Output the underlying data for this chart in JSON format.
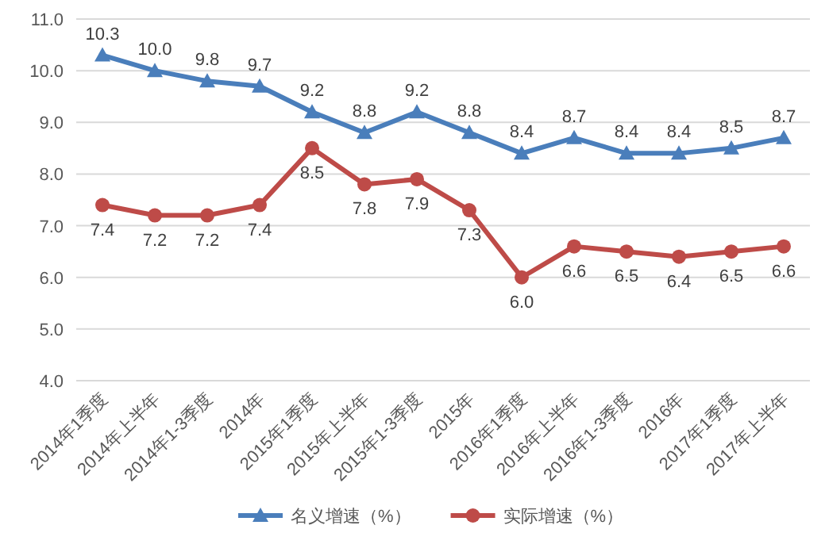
{
  "chart_data": {
    "type": "line",
    "categories": [
      "2014年1季度",
      "2014年上半年",
      "2014年1-3季度",
      "2014年",
      "2015年1季度",
      "2015年上半年",
      "2015年1-3季度",
      "2015年",
      "2016年1季度",
      "2016年上半年",
      "2016年1-3季度",
      "2016年",
      "2017年1季度",
      "2017年上半年"
    ],
    "series": [
      {
        "name": "名义增速（%）",
        "color": "#4a7ebb",
        "marker": "triangle",
        "values": [
          10.3,
          10.0,
          9.8,
          9.7,
          9.2,
          8.8,
          9.2,
          8.8,
          8.4,
          8.7,
          8.4,
          8.4,
          8.5,
          8.7
        ],
        "value_labels": [
          "10.3",
          "10.0",
          "9.8",
          "9.7",
          "9.2",
          "8.8",
          "9.2",
          "8.8",
          "8.4",
          "8.7",
          "8.4",
          "8.4",
          "8.5",
          "8.7"
        ]
      },
      {
        "name": "实际增速（%）",
        "color": "#be4b48",
        "marker": "circle",
        "values": [
          7.4,
          7.2,
          7.2,
          7.4,
          8.5,
          7.8,
          7.9,
          7.3,
          6.0,
          6.6,
          6.5,
          6.4,
          6.5,
          6.6
        ],
        "value_labels": [
          "7.4",
          "7.2",
          "7.2",
          "7.4",
          "8.5",
          "7.8",
          "7.9",
          "7.3",
          "6.0",
          "6.6",
          "6.5",
          "6.4",
          "6.5",
          "6.6"
        ]
      }
    ],
    "ylim": [
      4,
      11
    ],
    "yticks": [
      {
        "value": 4,
        "label": "4.0"
      },
      {
        "value": 5,
        "label": "5.0"
      },
      {
        "value": 6,
        "label": "6.0"
      },
      {
        "value": 7,
        "label": "7.0"
      },
      {
        "value": 8,
        "label": "8.0"
      },
      {
        "value": 9,
        "label": "9.0"
      },
      {
        "value": 10,
        "label": "10.0"
      },
      {
        "value": 11,
        "label": "11.0"
      }
    ],
    "grid": "y",
    "legend": "bottom",
    "line_style": "solid"
  }
}
